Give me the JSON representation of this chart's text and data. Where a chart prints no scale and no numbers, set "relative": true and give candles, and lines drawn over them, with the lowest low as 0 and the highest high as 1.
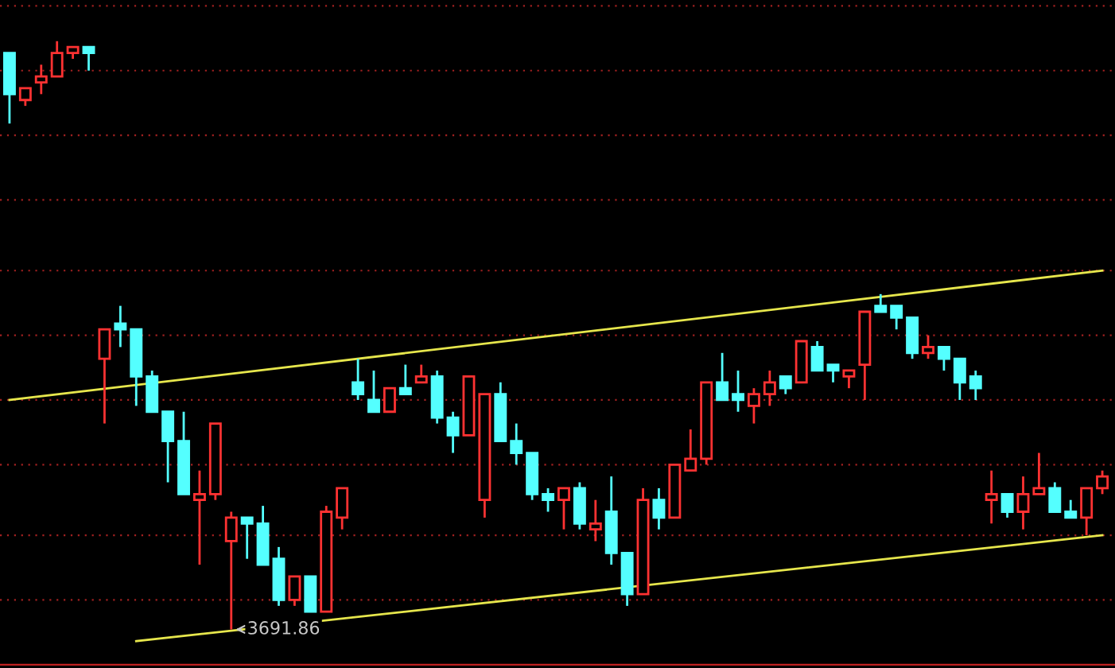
{
  "chart_data": {
    "type": "candlestick",
    "relative": true,
    "ref_lines": [
      {
        "axis": "y",
        "value": 1.06,
        "color": "#a02020",
        "line_style": "dotted"
      },
      {
        "axis": "y",
        "value": 0.95,
        "color": "#a02020",
        "line_style": "dotted"
      },
      {
        "axis": "y",
        "value": 0.84,
        "color": "#a02020",
        "line_style": "dotted"
      },
      {
        "axis": "y",
        "value": 0.73,
        "color": "#a02020",
        "line_style": "dotted"
      },
      {
        "axis": "y",
        "value": 0.61,
        "color": "#a02020",
        "line_style": "dotted"
      },
      {
        "axis": "y",
        "value": 0.5,
        "color": "#a02020",
        "line_style": "dotted"
      },
      {
        "axis": "y",
        "value": 0.39,
        "color": "#a02020",
        "line_style": "dotted"
      },
      {
        "axis": "y",
        "value": 0.28,
        "color": "#a02020",
        "line_style": "dotted"
      },
      {
        "axis": "y",
        "value": 0.16,
        "color": "#a02020",
        "line_style": "dotted"
      },
      {
        "axis": "y",
        "value": 0.05,
        "color": "#a02020",
        "line_style": "dotted"
      }
    ],
    "categories": [
      null,
      null,
      null,
      null,
      null,
      null,
      null,
      null,
      null,
      null,
      null,
      null,
      null,
      null,
      null,
      null,
      null,
      null,
      null,
      null,
      null,
      null,
      null,
      null,
      null,
      null,
      null,
      null,
      null,
      null,
      null,
      null,
      null,
      null,
      null,
      null,
      null,
      null,
      null,
      null,
      null,
      null,
      null,
      null,
      null,
      null,
      null,
      null,
      null,
      null,
      null,
      null,
      null,
      null,
      null,
      null,
      null,
      null,
      null,
      null,
      null,
      null,
      null,
      null,
      null,
      null,
      null,
      null,
      null,
      null
    ],
    "ohlc": [
      [
        0.98,
        0.98,
        0.86,
        0.91
      ],
      [
        0.9,
        0.92,
        0.89,
        0.92
      ],
      [
        0.93,
        0.96,
        0.91,
        0.94
      ],
      [
        0.94,
        1.0,
        0.94,
        0.98
      ],
      [
        0.98,
        0.99,
        0.97,
        0.99
      ],
      [
        0.99,
        0.99,
        0.95,
        0.98
      ],
      [
        0.46,
        0.51,
        0.35,
        0.51
      ],
      [
        0.52,
        0.55,
        0.48,
        0.51
      ],
      [
        0.51,
        0.51,
        0.38,
        0.43
      ],
      [
        0.43,
        0.44,
        0.37,
        0.37
      ],
      [
        0.37,
        0.37,
        0.25,
        0.32
      ],
      [
        0.32,
        0.37,
        0.23,
        0.23
      ],
      [
        0.22,
        0.27,
        0.11,
        0.23
      ],
      [
        0.23,
        0.35,
        0.22,
        0.35
      ],
      [
        0.15,
        0.2,
        0.0,
        0.19
      ],
      [
        0.19,
        0.19,
        0.12,
        0.18
      ],
      [
        0.18,
        0.21,
        0.11,
        0.11
      ],
      [
        0.12,
        0.14,
        0.04,
        0.05
      ],
      [
        0.05,
        0.09,
        0.04,
        0.09
      ],
      [
        0.09,
        0.09,
        0.03,
        0.03
      ],
      [
        0.03,
        0.21,
        0.03,
        0.2
      ],
      [
        0.19,
        0.24,
        0.17,
        0.24
      ],
      [
        0.42,
        0.46,
        0.39,
        0.4
      ],
      [
        0.39,
        0.44,
        0.37,
        0.37
      ],
      [
        0.37,
        0.41,
        0.37,
        0.41
      ],
      [
        0.41,
        0.45,
        0.4,
        0.4
      ],
      [
        0.42,
        0.45,
        0.42,
        0.43
      ],
      [
        0.43,
        0.44,
        0.35,
        0.36
      ],
      [
        0.36,
        0.37,
        0.3,
        0.33
      ],
      [
        0.33,
        0.43,
        0.33,
        0.43
      ],
      [
        0.22,
        0.4,
        0.19,
        0.4
      ],
      [
        0.4,
        0.42,
        0.32,
        0.32
      ],
      [
        0.32,
        0.35,
        0.28,
        0.3
      ],
      [
        0.3,
        0.3,
        0.22,
        0.23
      ],
      [
        0.23,
        0.24,
        0.2,
        0.22
      ],
      [
        0.22,
        0.24,
        0.17,
        0.24
      ],
      [
        0.24,
        0.25,
        0.17,
        0.18
      ],
      [
        0.17,
        0.22,
        0.15,
        0.18
      ],
      [
        0.2,
        0.26,
        0.11,
        0.13
      ],
      [
        0.13,
        0.13,
        0.04,
        0.06
      ],
      [
        0.06,
        0.24,
        0.06,
        0.22
      ],
      [
        0.22,
        0.24,
        0.17,
        0.19
      ],
      [
        0.19,
        0.28,
        0.19,
        0.28
      ],
      [
        0.27,
        0.34,
        0.27,
        0.29
      ],
      [
        0.29,
        0.42,
        0.28,
        0.42
      ],
      [
        0.42,
        0.47,
        0.39,
        0.39
      ],
      [
        0.4,
        0.44,
        0.37,
        0.39
      ],
      [
        0.38,
        0.41,
        0.35,
        0.4
      ],
      [
        0.4,
        0.44,
        0.38,
        0.42
      ],
      [
        0.43,
        0.43,
        0.4,
        0.41
      ],
      [
        0.42,
        0.49,
        0.42,
        0.49
      ],
      [
        0.48,
        0.49,
        0.44,
        0.44
      ],
      [
        0.45,
        0.45,
        0.42,
        0.44
      ],
      [
        0.43,
        0.44,
        0.41,
        0.44
      ],
      [
        0.45,
        0.54,
        0.39,
        0.54
      ],
      [
        0.55,
        0.57,
        0.54,
        0.54
      ],
      [
        0.55,
        0.55,
        0.51,
        0.53
      ],
      [
        0.53,
        0.53,
        0.46,
        0.47
      ],
      [
        0.47,
        0.5,
        0.46,
        0.48
      ],
      [
        0.48,
        0.48,
        0.44,
        0.46
      ],
      [
        0.46,
        0.46,
        0.39,
        0.42
      ],
      [
        0.43,
        0.44,
        0.39,
        0.41
      ],
      [
        0.22,
        0.27,
        0.18,
        0.23
      ],
      [
        0.23,
        0.23,
        0.19,
        0.2
      ],
      [
        0.2,
        0.26,
        0.17,
        0.23
      ],
      [
        0.23,
        0.3,
        0.23,
        0.24
      ],
      [
        0.24,
        0.25,
        0.2,
        0.2
      ],
      [
        0.2,
        0.22,
        0.19,
        0.19
      ],
      [
        0.19,
        0.24,
        0.16,
        0.24
      ],
      [
        0.24,
        0.27,
        0.23,
        0.26
      ]
    ],
    "colors": [
      "#54ffff",
      "#ff3232",
      "#ff3232",
      "#ff3232",
      "#ff3232",
      "#54ffff",
      "#ff3232",
      "#54ffff",
      "#54ffff",
      "#54ffff",
      "#54ffff",
      "#54ffff",
      "#ff3232",
      "#ff3232",
      "#ff3232",
      "#54ffff",
      "#54ffff",
      "#54ffff",
      "#ff3232",
      "#54ffff",
      "#ff3232",
      "#ff3232",
      "#54ffff",
      "#54ffff",
      "#ff3232",
      "#54ffff",
      "#ff3232",
      "#54ffff",
      "#54ffff",
      "#ff3232",
      "#ff3232",
      "#54ffff",
      "#54ffff",
      "#54ffff",
      "#54ffff",
      "#ff3232",
      "#54ffff",
      "#ff3232",
      "#54ffff",
      "#54ffff",
      "#ff3232",
      "#54ffff",
      "#ff3232",
      "#ff3232",
      "#ff3232",
      "#54ffff",
      "#54ffff",
      "#ff3232",
      "#ff3232",
      "#54ffff",
      "#ff3232",
      "#54ffff",
      "#54ffff",
      "#ff3232",
      "#ff3232",
      "#54ffff",
      "#54ffff",
      "#54ffff",
      "#ff3232",
      "#54ffff",
      "#54ffff",
      "#54ffff",
      "#ff3232",
      "#54ffff",
      "#ff3232",
      "#ff3232",
      "#54ffff",
      "#54ffff",
      "#ff3232",
      "#ff3232"
    ],
    "series": [
      {
        "type": "line",
        "values": [
          0.39,
          null,
          null,
          null,
          null,
          null,
          null,
          null,
          null,
          null,
          null,
          null,
          null,
          null,
          null,
          null,
          null,
          null,
          null,
          null,
          null,
          null,
          null,
          null,
          null,
          null,
          null,
          null,
          null,
          null,
          null,
          null,
          null,
          null,
          null,
          null,
          null,
          null,
          null,
          null,
          null,
          null,
          null,
          null,
          null,
          null,
          null,
          null,
          null,
          null,
          null,
          null,
          null,
          null,
          null,
          null,
          null,
          null,
          null,
          null,
          null,
          null,
          null,
          null,
          null,
          null,
          null,
          null,
          null,
          0.61
        ],
        "color": "#e6e64c"
      },
      {
        "type": "line",
        "values": [
          null,
          null,
          null,
          null,
          null,
          null,
          null,
          null,
          -0.02,
          null,
          null,
          null,
          null,
          null,
          null,
          null,
          null,
          null,
          null,
          null,
          null,
          null,
          null,
          null,
          null,
          null,
          null,
          null,
          null,
          null,
          null,
          null,
          null,
          null,
          null,
          null,
          null,
          null,
          null,
          null,
          null,
          null,
          null,
          null,
          null,
          null,
          null,
          null,
          null,
          null,
          null,
          null,
          null,
          null,
          null,
          null,
          null,
          null,
          null,
          null,
          null,
          null,
          null,
          null,
          null,
          null,
          null,
          null,
          null,
          0.16
        ],
        "color": "#e6e64c"
      }
    ],
    "annotations": [
      {
        "text": "3691.86",
        "y": 0
      }
    ]
  }
}
